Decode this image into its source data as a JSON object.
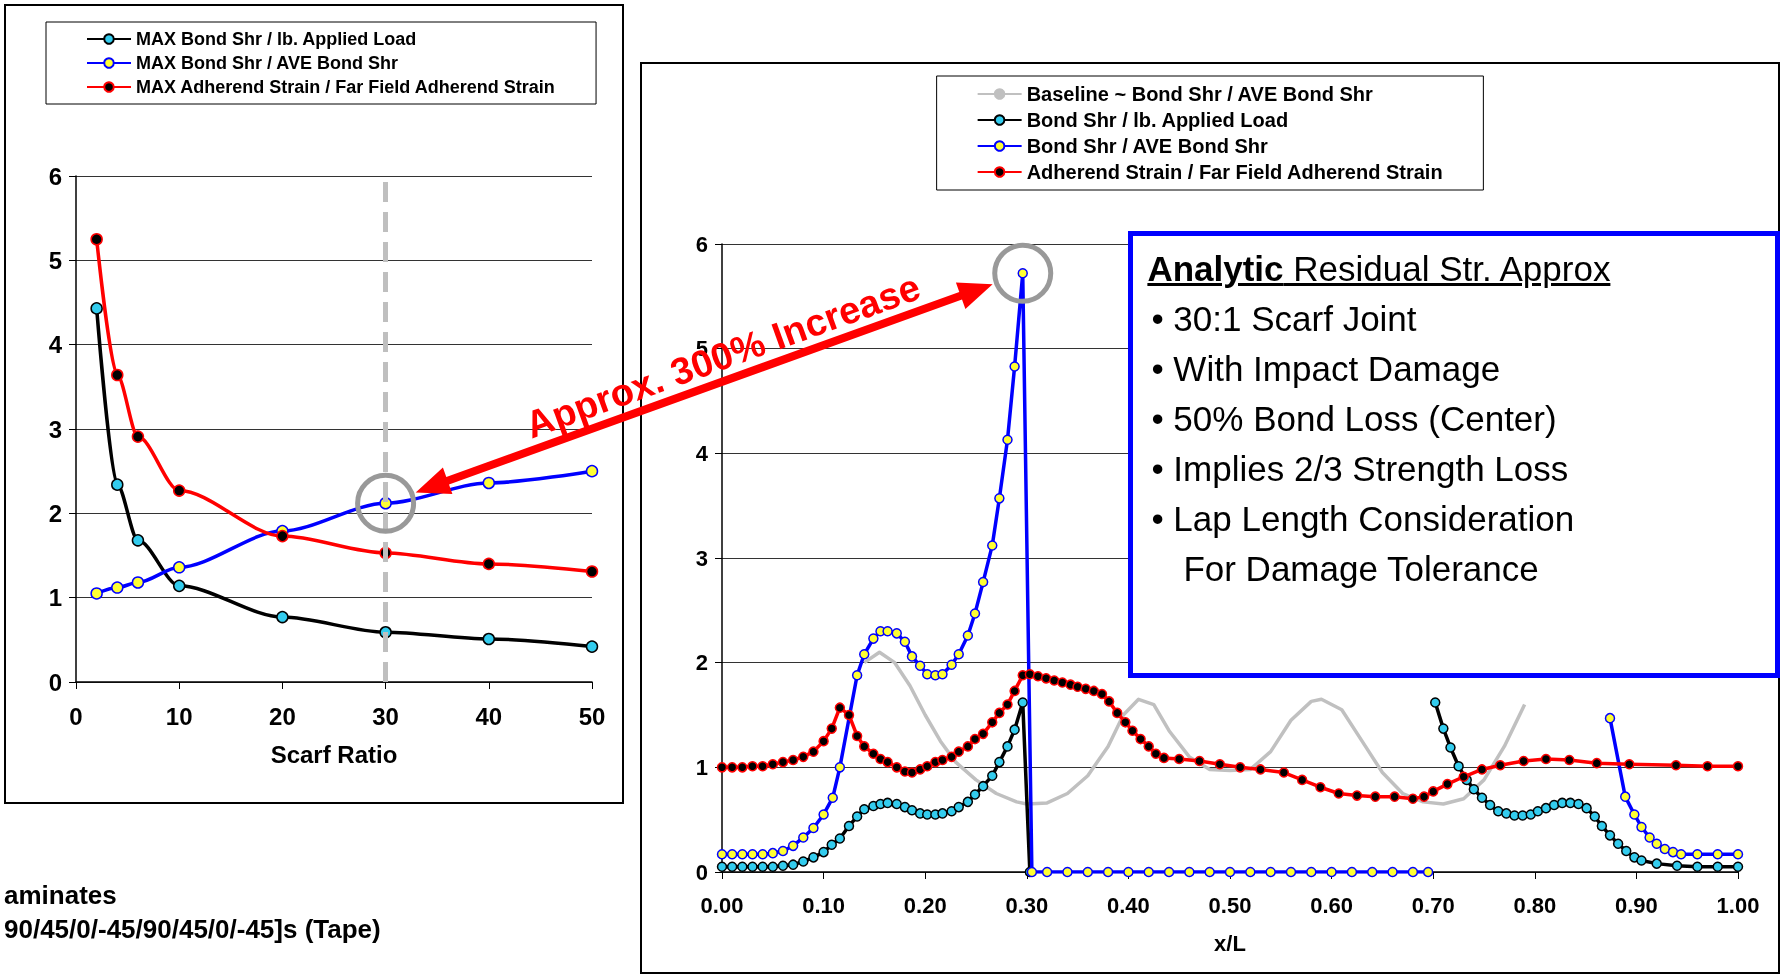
{
  "chart_data": [
    {
      "type": "line",
      "xlabel": "Scarf Ratio",
      "xlim": [
        0,
        50
      ],
      "xticks": [
        0,
        10,
        20,
        30,
        40,
        50
      ],
      "ylim": [
        0,
        6
      ],
      "yticks": [
        0,
        1,
        2,
        3,
        4,
        5,
        6
      ],
      "grid": "y",
      "legend": "top",
      "marker": "circle",
      "x": [
        2,
        4,
        6,
        10,
        20,
        30,
        40,
        50
      ],
      "series": [
        {
          "name": "MAX Bond Shr / lb. Applied Load",
          "color": "#000000",
          "values": [
            4.43,
            2.34,
            1.68,
            1.14,
            0.77,
            0.59,
            0.51,
            0.42
          ]
        },
        {
          "name": "MAX Bond Shr / AVE Bond Shr",
          "color": "#0000ff",
          "values": [
            1.05,
            1.12,
            1.18,
            1.36,
            1.79,
            2.12,
            2.36,
            2.5
          ]
        },
        {
          "name": "MAX Adherend Strain / Far Field Adherend Strain",
          "color": "#ff0000",
          "values": [
            5.25,
            3.64,
            2.91,
            2.27,
            1.73,
            1.53,
            1.4,
            1.31
          ]
        }
      ],
      "ref_lines": [
        {
          "axis": "x",
          "value": 30,
          "color": "#bfbfbf",
          "line_style": "dashed"
        }
      ],
      "annotations": [
        "aminates",
        "90/45/0/-45/90/45/0/-45]s (Tape)"
      ]
    },
    {
      "type": "line",
      "xlabel": "x/L",
      "xlim": [
        0,
        1
      ],
      "xticks": [
        {
          "value": 0,
          "label": "0.00"
        },
        {
          "value": 0.1,
          "label": "0.10"
        },
        {
          "value": 0.2,
          "label": "0.20"
        },
        {
          "value": 0.3,
          "label": "0.30"
        },
        {
          "value": 0.4,
          "label": "0.40"
        },
        {
          "value": 0.5,
          "label": "0.50"
        },
        {
          "value": 0.6,
          "label": "0.60"
        },
        {
          "value": 0.7,
          "label": "0.70"
        },
        {
          "value": 0.8,
          "label": "0.80"
        },
        {
          "value": 0.9,
          "label": "0.90"
        },
        {
          "value": 1,
          "label": "1.00"
        }
      ],
      "ylim": [
        0,
        6
      ],
      "yticks": [
        0,
        1,
        2,
        3,
        4,
        5,
        6
      ],
      "grid": "y",
      "legend": "top",
      "marker": "circle",
      "series": [
        {
          "name": "Baseline ~ Bond Shr / AVE Bond Shr",
          "color": "#c0c0c0",
          "marker": "none",
          "x": [
            0.14,
            0.155,
            0.17,
            0.185,
            0.2,
            0.215,
            0.23,
            0.25,
            0.27,
            0.29,
            0.3,
            0.32,
            0.34,
            0.36,
            0.38,
            0.395,
            0.41,
            0.425,
            0.44,
            0.46,
            0.48,
            0.5,
            0.52,
            0.54,
            0.56,
            0.58,
            0.59,
            0.61,
            0.63,
            0.65,
            0.67,
            0.69,
            0.71,
            0.73,
            0.75,
            0.77,
            0.79
          ],
          "values": [
            2.0,
            2.1,
            2.0,
            1.78,
            1.5,
            1.25,
            1.05,
            0.88,
            0.75,
            0.67,
            0.65,
            0.66,
            0.75,
            0.92,
            1.2,
            1.5,
            1.65,
            1.6,
            1.35,
            1.1,
            0.98,
            0.97,
            0.98,
            1.15,
            1.45,
            1.63,
            1.65,
            1.55,
            1.25,
            0.95,
            0.75,
            0.67,
            0.65,
            0.7,
            0.88,
            1.2,
            1.6
          ]
        },
        {
          "name": "Bond Shr / lb. Applied Load",
          "color": "#000000",
          "x": [
            0,
            0.01,
            0.02,
            0.03,
            0.04,
            0.05,
            0.06,
            0.07,
            0.08,
            0.09,
            0.1,
            0.108,
            0.116,
            0.125,
            0.133,
            0.14,
            0.149,
            0.156,
            0.163,
            0.172,
            0.18,
            0.187,
            0.195,
            0.202,
            0.21,
            0.217,
            0.226,
            0.233,
            0.242,
            0.249,
            0.257,
            0.266,
            0.273,
            0.281,
            0.288,
            0.296,
            0.303,
            0.5,
            0.702,
            0.71,
            0.717,
            0.725,
            0.733,
            0.74,
            0.748,
            0.756,
            0.764,
            0.772,
            0.78,
            0.788,
            0.796,
            0.803,
            0.811,
            0.819,
            0.827,
            0.835,
            0.843,
            0.851,
            0.859,
            0.866,
            0.874,
            0.882,
            0.89,
            0.898,
            0.905,
            0.92,
            0.94,
            0.96,
            0.98,
            1.0
          ],
          "values": [
            0.05,
            0.05,
            0.05,
            0.05,
            0.05,
            0.05,
            0.06,
            0.07,
            0.1,
            0.14,
            0.19,
            0.26,
            0.32,
            0.44,
            0.53,
            0.6,
            0.63,
            0.65,
            0.66,
            0.65,
            0.62,
            0.59,
            0.56,
            0.55,
            0.55,
            0.56,
            0.58,
            0.62,
            0.67,
            0.74,
            0.82,
            0.92,
            1.05,
            1.2,
            1.36,
            1.62,
            0,
            null,
            1.62,
            1.37,
            1.19,
            1.01,
            0.88,
            0.79,
            0.71,
            0.64,
            0.58,
            0.56,
            0.54,
            0.54,
            0.55,
            0.58,
            0.61,
            0.64,
            0.66,
            0.66,
            0.65,
            0.61,
            0.53,
            0.44,
            0.35,
            0.27,
            0.2,
            0.14,
            0.11,
            0.08,
            0.06,
            0.05,
            0.05,
            0.05
          ]
        },
        {
          "name": "Bond Shr / AVE Bond Shr",
          "color": "#0000ff",
          "x": [
            0,
            0.01,
            0.02,
            0.03,
            0.04,
            0.05,
            0.06,
            0.07,
            0.08,
            0.09,
            0.1,
            0.109,
            0.116,
            0.133,
            0.14,
            0.149,
            0.156,
            0.163,
            0.172,
            0.18,
            0.187,
            0.195,
            0.202,
            0.21,
            0.217,
            0.226,
            0.233,
            0.242,
            0.249,
            0.257,
            0.266,
            0.273,
            0.281,
            0.288,
            0.296,
            0.305,
            0.32,
            0.34,
            0.36,
            0.38,
            0.4,
            0.42,
            0.44,
            0.46,
            0.48,
            0.5,
            0.52,
            0.54,
            0.56,
            0.58,
            0.6,
            0.62,
            0.64,
            0.66,
            0.68,
            0.695,
            0.7,
            0.874,
            0.889,
            0.898,
            0.905,
            0.913,
            0.92,
            0.928,
            0.936,
            0.944,
            0.96,
            0.98,
            1.0
          ],
          "values": [
            0.17,
            0.17,
            0.17,
            0.17,
            0.17,
            0.18,
            0.2,
            0.25,
            0.33,
            0.42,
            0.55,
            0.71,
            1.0,
            1.88,
            2.08,
            2.23,
            2.3,
            2.3,
            2.28,
            2.2,
            2.06,
            1.97,
            1.89,
            1.88,
            1.89,
            1.98,
            2.08,
            2.26,
            2.47,
            2.77,
            3.12,
            3.57,
            4.13,
            4.83,
            5.72,
            0,
            0,
            0,
            0,
            0,
            0,
            0,
            0,
            0,
            0,
            0,
            0,
            0,
            0,
            0,
            0,
            0,
            0,
            0,
            0,
            0,
            null,
            1.47,
            0.72,
            0.55,
            0.43,
            0.33,
            0.27,
            0.22,
            0.19,
            0.17,
            0.17,
            0.17,
            0.17
          ]
        },
        {
          "name": "Adherend Strain / Far Field Adherend Strain",
          "color": "#ff0000",
          "x": [
            0,
            0.01,
            0.02,
            0.03,
            0.04,
            0.05,
            0.06,
            0.07,
            0.08,
            0.09,
            0.1,
            0.108,
            0.116,
            0.125,
            0.133,
            0.14,
            0.149,
            0.156,
            0.163,
            0.172,
            0.18,
            0.187,
            0.195,
            0.202,
            0.21,
            0.217,
            0.226,
            0.233,
            0.242,
            0.249,
            0.257,
            0.266,
            0.273,
            0.281,
            0.288,
            0.296,
            0.303,
            0.311,
            0.319,
            0.327,
            0.335,
            0.343,
            0.35,
            0.358,
            0.366,
            0.374,
            0.381,
            0.389,
            0.397,
            0.404,
            0.412,
            0.42,
            0.427,
            0.435,
            0.45,
            0.47,
            0.49,
            0.51,
            0.53,
            0.553,
            0.571,
            0.589,
            0.607,
            0.625,
            0.643,
            0.662,
            0.68,
            0.691,
            0.7,
            0.714,
            0.73,
            0.748,
            0.766,
            0.789,
            0.811,
            0.834,
            0.861,
            0.893,
            0.939,
            0.97,
            1.0
          ],
          "values": [
            1.0,
            1.0,
            1.0,
            1.01,
            1.01,
            1.03,
            1.05,
            1.07,
            1.1,
            1.15,
            1.25,
            1.37,
            1.57,
            1.5,
            1.3,
            1.2,
            1.13,
            1.08,
            1.05,
            1.0,
            0.96,
            0.95,
            0.98,
            1.01,
            1.05,
            1.07,
            1.1,
            1.15,
            1.2,
            1.27,
            1.32,
            1.43,
            1.52,
            1.6,
            1.73,
            1.88,
            1.89,
            1.87,
            1.85,
            1.83,
            1.81,
            1.79,
            1.77,
            1.75,
            1.73,
            1.7,
            1.63,
            1.52,
            1.43,
            1.35,
            1.27,
            1.2,
            1.13,
            1.09,
            1.08,
            1.06,
            1.03,
            1.0,
            0.98,
            0.95,
            0.88,
            0.81,
            0.75,
            0.73,
            0.72,
            0.72,
            0.7,
            0.72,
            0.77,
            0.84,
            0.91,
            0.98,
            1.02,
            1.06,
            1.08,
            1.07,
            1.04,
            1.03,
            1.02,
            1.01,
            1.01
          ]
        }
      ],
      "annotations": [
        "Approx. 300% Increase",
        "Analytic Residual Str. Approx",
        "• 30:1 Scarf Joint",
        "• With Impact Damage",
        "• 50% Bond Loss (Center)",
        "• Implies 2/3 Strength Loss",
        "• Lap Length Consideration\nFor Damage Tolerance"
      ]
    }
  ]
}
